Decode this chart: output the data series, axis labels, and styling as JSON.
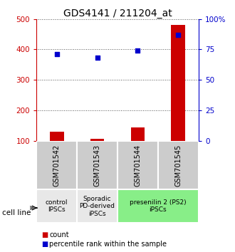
{
  "title": "GDS4141 / 211204_at",
  "samples": [
    "GSM701542",
    "GSM701543",
    "GSM701544",
    "GSM701545"
  ],
  "counts": [
    130,
    107,
    145,
    480
  ],
  "percentiles": [
    71,
    68,
    74,
    87
  ],
  "left_ylim": [
    100,
    500
  ],
  "right_ylim": [
    0,
    100
  ],
  "left_yticks": [
    100,
    200,
    300,
    400,
    500
  ],
  "right_yticks": [
    0,
    25,
    50,
    75,
    100
  ],
  "right_yticklabels": [
    "0",
    "25",
    "50",
    "75",
    "100%"
  ],
  "bar_color": "#cc0000",
  "dot_color": "#0000cc",
  "groups": [
    {
      "label": "control\nIPSCs",
      "samples": [
        0
      ],
      "color": "#e8e8e8"
    },
    {
      "label": "Sporadic\nPD-derived\niPSCs",
      "samples": [
        1
      ],
      "color": "#e8e8e8"
    },
    {
      "label": "presenilin 2 (PS2)\niPSCs",
      "samples": [
        2,
        3
      ],
      "color": "#88ee88"
    }
  ],
  "cell_line_label": "cell line",
  "legend_count_label": "count",
  "legend_pct_label": "percentile rank within the sample",
  "bar_width": 0.35,
  "dot_size": 25,
  "grid_color": "#555555",
  "title_fontsize": 10,
  "tick_fontsize": 7.5,
  "label_fontsize": 8,
  "sample_label_fontsize": 7,
  "group_label_fontsize": 6.5
}
